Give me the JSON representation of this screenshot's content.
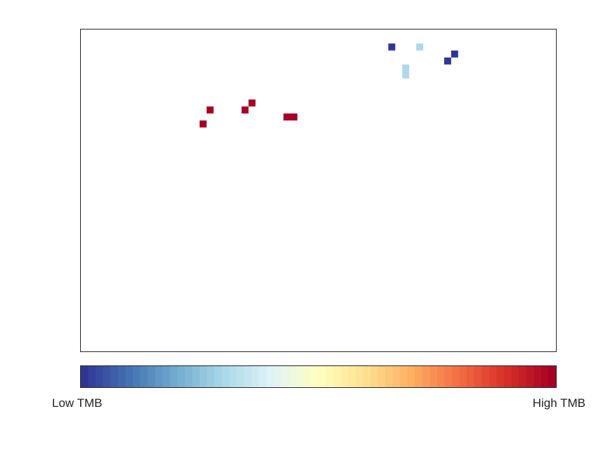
{
  "chart_data": {
    "type": "heatmap",
    "grid": false,
    "legend_position": "bottom",
    "colorbar": {
      "low_label": "Low TMB",
      "high_label": "High TMB",
      "colors": [
        "#313695",
        "#4575b4",
        "#74add1",
        "#abd9e9",
        "#e0f3f8",
        "#ffffbf",
        "#fee090",
        "#fdae61",
        "#f46d43",
        "#d73027",
        "#a50026"
      ]
    },
    "grid_size": {
      "cols": 68,
      "rows": 46
    },
    "cells": [
      {
        "col": 44,
        "row": 2,
        "span": 1,
        "value": 0.0
      },
      {
        "col": 48,
        "row": 2,
        "span": 1,
        "value": 0.3
      },
      {
        "col": 53,
        "row": 3,
        "span": 1,
        "value": 0.0
      },
      {
        "col": 52,
        "row": 4,
        "span": 1,
        "value": 0.0
      },
      {
        "col": 46,
        "row": 5,
        "span": 1,
        "value": 0.3
      },
      {
        "col": 46,
        "row": 6,
        "span": 1,
        "value": 0.3
      },
      {
        "col": 24,
        "row": 10,
        "span": 1,
        "value": 1.0
      },
      {
        "col": 18,
        "row": 11,
        "span": 1,
        "value": 1.0
      },
      {
        "col": 23,
        "row": 11,
        "span": 1,
        "value": 1.0
      },
      {
        "col": 29,
        "row": 12,
        "span": 2,
        "value": 1.0
      },
      {
        "col": 17,
        "row": 13,
        "span": 1,
        "value": 1.0
      }
    ]
  }
}
